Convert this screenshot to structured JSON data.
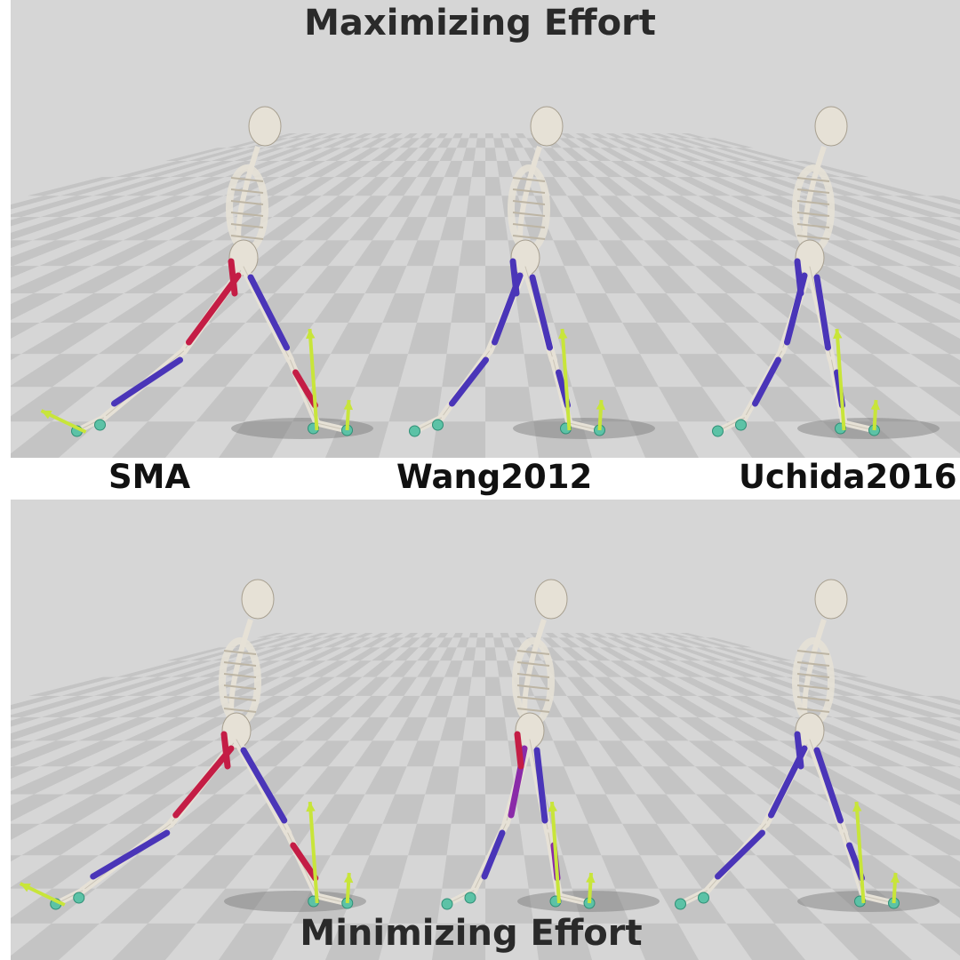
{
  "titles": {
    "top": "Maximizing Effort",
    "bottom": "Minimizing Effort"
  },
  "models": [
    "SMA",
    "Wang2012",
    "Uchida2016"
  ],
  "rows": [
    {
      "condition": "Maximizing Effort"
    },
    {
      "condition": "Minimizing Effort"
    }
  ],
  "colors": {
    "floor_light": "#cfcfcf",
    "floor_dark": "#b6b6b6",
    "bone": "#e6e1d6",
    "muscle_active": "#c41d45",
    "muscle_inactive": "#4a35b8",
    "muscle_purple": "#8a2aa8",
    "grf_arrow": "#c8e53a",
    "contact_sphere": "#5cc2a6"
  }
}
